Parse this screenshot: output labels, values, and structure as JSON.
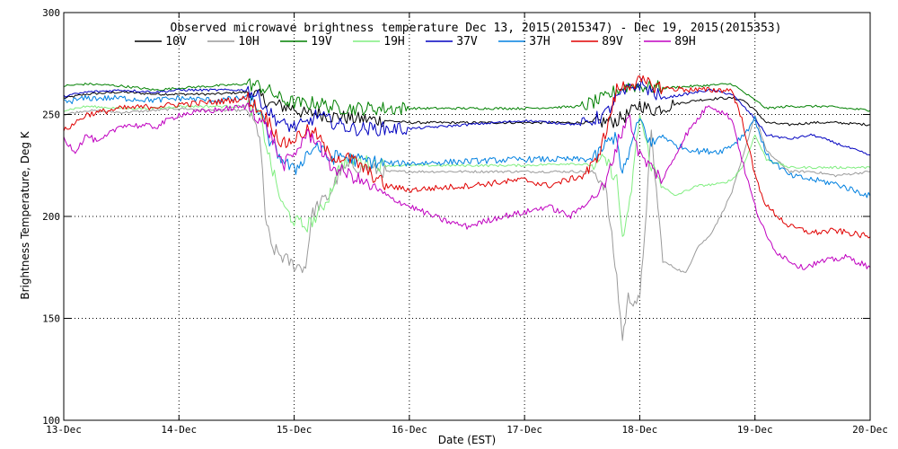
{
  "chart_data": {
    "type": "line",
    "title": "Observed microwave brightness temperature Dec 13, 2015(2015347) - Dec 19, 2015(2015353)",
    "xlabel": "Date (EST)",
    "ylabel": "Brightness Temperature, Deg K",
    "xlim": [
      0,
      7
    ],
    "ylim": [
      100,
      300
    ],
    "x_ticks": [
      0,
      1,
      2,
      3,
      4,
      5,
      6,
      7
    ],
    "x_tick_labels": [
      "13-Dec",
      "14-Dec",
      "15-Dec",
      "16-Dec",
      "17-Dec",
      "18-Dec",
      "19-Dec",
      "20-Dec"
    ],
    "y_ticks": [
      100,
      150,
      200,
      250,
      300
    ],
    "y_tick_labels": [
      "100",
      "150",
      "200",
      "250",
      "300"
    ],
    "grid": true,
    "legend_position": "top",
    "series": [
      {
        "name": "10V",
        "color": "#000000",
        "x": [
          0,
          0.2,
          0.5,
          0.8,
          1.0,
          1.3,
          1.6,
          1.7,
          1.8,
          1.9,
          2.0,
          2.1,
          2.2,
          2.3,
          2.4,
          2.5,
          2.8,
          3.0,
          3.5,
          4.0,
          4.3,
          4.6,
          4.8,
          4.9,
          5.0,
          5.1,
          5.3,
          5.5,
          5.7,
          5.8,
          5.9,
          6.0,
          6.1,
          6.3,
          6.5,
          6.7,
          7.0
        ],
        "y": [
          258,
          260,
          261,
          260,
          260,
          260,
          261,
          259,
          255,
          254,
          253,
          250,
          251,
          249,
          249,
          248,
          247,
          246,
          246,
          246,
          246,
          246,
          247,
          250,
          255,
          252,
          255,
          257,
          258,
          258,
          257,
          252,
          246,
          245,
          246,
          246,
          245
        ]
      },
      {
        "name": "10H",
        "color": "#9a9a9a",
        "x": [
          0,
          0.2,
          0.5,
          0.8,
          1.0,
          1.3,
          1.6,
          1.7,
          1.75,
          1.8,
          1.9,
          2.0,
          2.1,
          2.15,
          2.2,
          2.3,
          2.4,
          2.5,
          2.8,
          3.0,
          3.5,
          4.0,
          4.3,
          4.6,
          4.7,
          4.8,
          4.85,
          4.9,
          5.0,
          5.1,
          5.2,
          5.3,
          5.4,
          5.5,
          5.6,
          5.7,
          5.8,
          5.9,
          6.0,
          6.1,
          6.3,
          6.5,
          6.7,
          7.0
        ],
        "y": [
          250,
          252,
          251,
          252,
          253,
          252,
          252,
          240,
          200,
          185,
          180,
          176,
          175,
          200,
          205,
          210,
          222,
          225,
          222,
          222,
          222,
          222,
          222,
          222,
          215,
          170,
          140,
          160,
          158,
          240,
          178,
          175,
          172,
          185,
          190,
          200,
          212,
          230,
          250,
          232,
          222,
          222,
          220,
          222
        ]
      },
      {
        "name": "19V",
        "color": "#008000",
        "x": [
          0,
          0.2,
          0.5,
          0.8,
          1.0,
          1.3,
          1.6,
          1.7,
          1.8,
          1.9,
          2.0,
          2.1,
          2.2,
          2.3,
          2.5,
          3.0,
          3.5,
          4.0,
          4.5,
          4.7,
          4.8,
          4.9,
          5.0,
          5.2,
          5.5,
          5.8,
          6.0,
          6.1,
          6.3,
          6.6,
          7.0
        ],
        "y": [
          264,
          265,
          264,
          262,
          263,
          264,
          265,
          264,
          261,
          257,
          256,
          255,
          256,
          254,
          253,
          253,
          253,
          253,
          254,
          258,
          262,
          264,
          264,
          263,
          264,
          265,
          257,
          253,
          254,
          254,
          252
        ]
      },
      {
        "name": "19H",
        "color": "#80ee80",
        "x": [
          0,
          0.2,
          0.5,
          0.8,
          1.0,
          1.3,
          1.6,
          1.7,
          1.8,
          1.9,
          2.0,
          2.1,
          2.2,
          2.3,
          2.4,
          2.5,
          2.8,
          3.0,
          3.5,
          4.0,
          4.4,
          4.6,
          4.7,
          4.8,
          4.85,
          4.9,
          5.0,
          5.1,
          5.2,
          5.3,
          5.5,
          5.7,
          5.8,
          5.9,
          6.0,
          6.1,
          6.3,
          6.6,
          7.0
        ],
        "y": [
          252,
          254,
          253,
          253,
          254,
          254,
          254,
          250,
          225,
          205,
          198,
          195,
          200,
          210,
          225,
          228,
          225,
          225,
          225,
          225,
          226,
          225,
          228,
          218,
          190,
          200,
          250,
          225,
          215,
          210,
          215,
          216,
          218,
          225,
          240,
          228,
          224,
          224,
          224
        ]
      },
      {
        "name": "37V",
        "color": "#0000c0",
        "x": [
          0,
          0.2,
          0.5,
          0.8,
          1.0,
          1.3,
          1.6,
          1.7,
          1.8,
          1.9,
          2.0,
          2.1,
          2.2,
          2.3,
          2.5,
          3.0,
          3.5,
          4.0,
          4.5,
          4.7,
          4.8,
          4.9,
          5.0,
          5.2,
          5.4,
          5.6,
          5.8,
          6.0,
          6.1,
          6.3,
          6.5,
          6.7,
          7.0
        ],
        "y": [
          259,
          261,
          262,
          261,
          262,
          262,
          262,
          258,
          250,
          245,
          244,
          245,
          250,
          247,
          243,
          243,
          245,
          247,
          245,
          250,
          258,
          262,
          265,
          258,
          260,
          262,
          260,
          248,
          240,
          238,
          240,
          236,
          230
        ]
      },
      {
        "name": "37H",
        "color": "#0080e0",
        "x": [
          0,
          0.2,
          0.5,
          0.8,
          1.0,
          1.3,
          1.6,
          1.7,
          1.8,
          1.9,
          2.0,
          2.1,
          2.2,
          2.3,
          2.4,
          2.5,
          2.8,
          3.0,
          3.5,
          4.0,
          4.4,
          4.6,
          4.7,
          4.8,
          4.85,
          4.9,
          5.0,
          5.1,
          5.2,
          5.3,
          5.5,
          5.7,
          5.8,
          5.9,
          6.0,
          6.1,
          6.3,
          6.5,
          6.7,
          7.0
        ],
        "y": [
          256,
          258,
          258,
          257,
          258,
          257,
          258,
          252,
          235,
          228,
          222,
          230,
          235,
          228,
          230,
          228,
          226,
          226,
          227,
          228,
          228,
          228,
          235,
          240,
          220,
          230,
          248,
          235,
          240,
          235,
          232,
          232,
          235,
          240,
          248,
          230,
          220,
          218,
          216,
          210
        ]
      },
      {
        "name": "89V",
        "color": "#e00000",
        "x": [
          0,
          0.2,
          0.5,
          0.8,
          1.0,
          1.3,
          1.6,
          1.7,
          1.8,
          1.9,
          2.0,
          2.1,
          2.2,
          2.3,
          2.5,
          2.8,
          3.0,
          3.5,
          4.0,
          4.2,
          4.5,
          4.6,
          4.7,
          4.8,
          4.9,
          5.0,
          5.2,
          5.5,
          5.8,
          5.9,
          6.0,
          6.1,
          6.3,
          6.5,
          6.7,
          7.0
        ],
        "y": [
          242,
          250,
          253,
          254,
          255,
          256,
          258,
          252,
          245,
          235,
          238,
          242,
          240,
          230,
          228,
          215,
          213,
          215,
          218,
          215,
          220,
          225,
          240,
          262,
          265,
          266,
          263,
          262,
          262,
          245,
          220,
          205,
          195,
          192,
          193,
          190
        ]
      },
      {
        "name": "89H",
        "color": "#c000c0",
        "x": [
          0,
          0.1,
          0.2,
          0.3,
          0.5,
          0.8,
          1.0,
          1.3,
          1.6,
          1.7,
          1.8,
          1.9,
          2.0,
          2.1,
          2.2,
          2.3,
          2.5,
          2.8,
          3.0,
          3.3,
          3.5,
          3.8,
          4.0,
          4.2,
          4.4,
          4.6,
          4.7,
          4.8,
          4.9,
          5.0,
          5.2,
          5.4,
          5.6,
          5.8,
          5.9,
          6.0,
          6.1,
          6.2,
          6.4,
          6.6,
          6.8,
          7.0
        ],
        "y": [
          238,
          232,
          240,
          236,
          245,
          244,
          250,
          252,
          254,
          248,
          240,
          225,
          230,
          240,
          238,
          225,
          220,
          210,
          205,
          198,
          195,
          200,
          202,
          205,
          200,
          210,
          215,
          235,
          250,
          230,
          218,
          240,
          255,
          248,
          225,
          205,
          190,
          182,
          175,
          178,
          180,
          175
        ]
      }
    ]
  }
}
